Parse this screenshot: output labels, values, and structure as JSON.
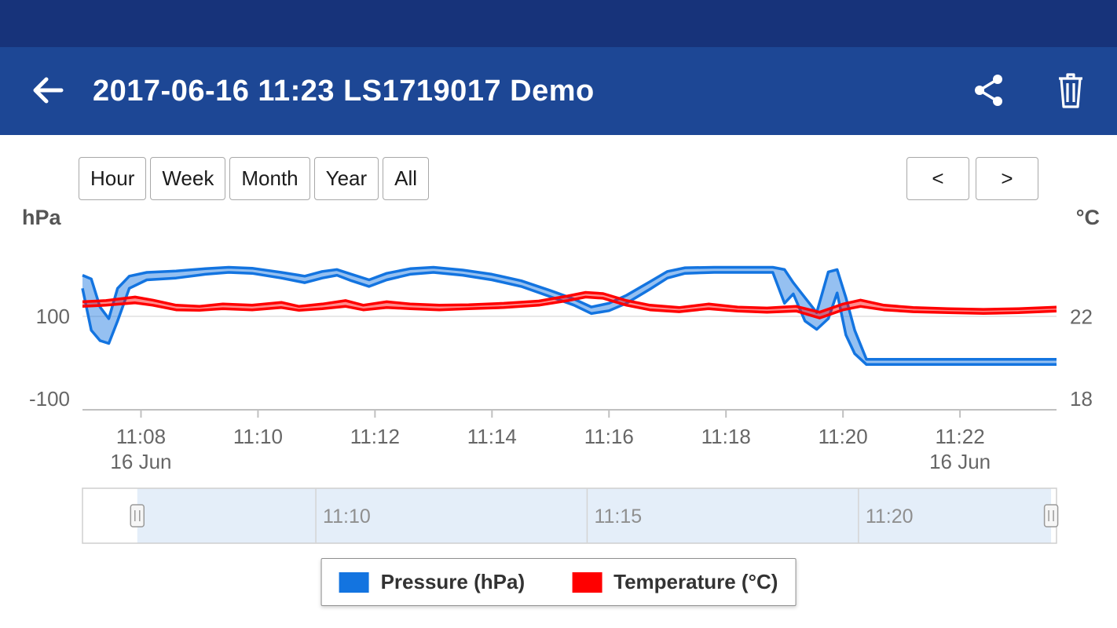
{
  "colors": {
    "status_bar": "#17337a",
    "app_bar": "#1d4795",
    "pressure": "#1374e0",
    "temperature": "#ff0000"
  },
  "app_bar": {
    "title": "2017-06-16 11:23 LS1719017 Demo",
    "back_icon": "arrow-left",
    "share_icon": "share",
    "delete_icon": "trash"
  },
  "toolbar": {
    "range_buttons": [
      {
        "label": "Hour"
      },
      {
        "label": "Week"
      },
      {
        "label": "Month"
      },
      {
        "label": "Year"
      },
      {
        "label": "All"
      }
    ],
    "prev_label": "<",
    "next_label": ">"
  },
  "chart_data": {
    "type": "arearange-line",
    "title": "",
    "left_axis": {
      "unit": "hPa",
      "min": -100,
      "max": 273,
      "ticks": [
        {
          "value": 100,
          "label": "100"
        },
        {
          "value": -100,
          "label": "-100"
        }
      ]
    },
    "right_axis": {
      "unit": "°C",
      "min": 18,
      "max": 25.5,
      "ticks": [
        {
          "value": 22,
          "label": "22"
        },
        {
          "value": 18,
          "label": "18"
        }
      ]
    },
    "x_axis": {
      "min": 0,
      "max": 16.65,
      "labels": [
        {
          "t": 1,
          "label": "11:08",
          "sub": "16 Jun"
        },
        {
          "t": 3,
          "label": "11:10"
        },
        {
          "t": 5,
          "label": "11:12"
        },
        {
          "t": 7,
          "label": "11:14"
        },
        {
          "t": 9,
          "label": "11:16"
        },
        {
          "t": 11,
          "label": "11:18"
        },
        {
          "t": 13,
          "label": "11:20"
        },
        {
          "t": 15,
          "label": "11:22",
          "sub": "16 Jun"
        }
      ]
    },
    "series": [
      {
        "name": "Pressure (hPa)",
        "axis": "left",
        "color": "#1374e0",
        "points": [
          [
            0.0,
            160,
            188
          ],
          [
            0.15,
            70,
            180
          ],
          [
            0.3,
            48,
            120
          ],
          [
            0.45,
            42,
            95
          ],
          [
            0.6,
            90,
            160
          ],
          [
            0.8,
            160,
            186
          ],
          [
            1.1,
            178,
            194
          ],
          [
            1.6,
            182,
            197
          ],
          [
            2.1,
            190,
            202
          ],
          [
            2.5,
            194,
            205
          ],
          [
            2.9,
            192,
            203
          ],
          [
            3.4,
            182,
            194
          ],
          [
            3.8,
            172,
            186
          ],
          [
            4.1,
            182,
            196
          ],
          [
            4.35,
            188,
            200
          ],
          [
            4.6,
            176,
            190
          ],
          [
            4.9,
            164,
            178
          ],
          [
            5.2,
            178,
            192
          ],
          [
            5.6,
            190,
            202
          ],
          [
            6.0,
            194,
            205
          ],
          [
            6.5,
            188,
            199
          ],
          [
            7.0,
            178,
            190
          ],
          [
            7.5,
            164,
            176
          ],
          [
            8.0,
            142,
            155
          ],
          [
            8.4,
            124,
            137
          ],
          [
            8.7,
            106,
            120
          ],
          [
            9.0,
            112,
            128
          ],
          [
            9.3,
            128,
            145
          ],
          [
            9.7,
            158,
            174
          ],
          [
            10.0,
            182,
            196
          ],
          [
            10.3,
            192,
            204
          ],
          [
            10.8,
            194,
            205
          ],
          [
            11.8,
            194,
            205
          ],
          [
            12.0,
            128,
            200
          ],
          [
            12.15,
            148,
            172
          ],
          [
            12.35,
            90,
            140
          ],
          [
            12.55,
            72,
            108
          ],
          [
            12.75,
            95,
            195
          ],
          [
            12.9,
            150,
            200
          ],
          [
            13.05,
            60,
            140
          ],
          [
            13.2,
            20,
            70
          ],
          [
            13.4,
            -3,
            8
          ],
          [
            14.5,
            -3,
            8
          ],
          [
            16.65,
            -3,
            8
          ]
        ]
      },
      {
        "name": "Temperature (°C)",
        "axis": "right",
        "color": "#ff0000",
        "points": [
          [
            0.0,
            22.45,
            22.65
          ],
          [
            0.4,
            22.5,
            22.7
          ],
          [
            0.9,
            22.6,
            22.85
          ],
          [
            1.2,
            22.5,
            22.72
          ],
          [
            1.6,
            22.3,
            22.5
          ],
          [
            2.0,
            22.28,
            22.45
          ],
          [
            2.4,
            22.35,
            22.55
          ],
          [
            2.9,
            22.3,
            22.5
          ],
          [
            3.4,
            22.4,
            22.62
          ],
          [
            3.7,
            22.28,
            22.45
          ],
          [
            4.1,
            22.35,
            22.55
          ],
          [
            4.5,
            22.45,
            22.7
          ],
          [
            4.8,
            22.3,
            22.5
          ],
          [
            5.2,
            22.4,
            22.65
          ],
          [
            5.6,
            22.35,
            22.55
          ],
          [
            6.1,
            22.3,
            22.5
          ],
          [
            6.6,
            22.35,
            22.52
          ],
          [
            7.2,
            22.4,
            22.58
          ],
          [
            7.8,
            22.5,
            22.68
          ],
          [
            8.3,
            22.7,
            22.9
          ],
          [
            8.6,
            22.85,
            23.05
          ],
          [
            8.9,
            22.8,
            23.0
          ],
          [
            9.3,
            22.5,
            22.7
          ],
          [
            9.7,
            22.3,
            22.5
          ],
          [
            10.2,
            22.22,
            22.4
          ],
          [
            10.7,
            22.35,
            22.55
          ],
          [
            11.2,
            22.25,
            22.42
          ],
          [
            11.7,
            22.2,
            22.38
          ],
          [
            12.2,
            22.25,
            22.45
          ],
          [
            12.6,
            21.95,
            22.2
          ],
          [
            13.0,
            22.3,
            22.55
          ],
          [
            13.3,
            22.45,
            22.72
          ],
          [
            13.7,
            22.3,
            22.5
          ],
          [
            14.2,
            22.22,
            22.4
          ],
          [
            14.8,
            22.18,
            22.35
          ],
          [
            15.4,
            22.15,
            22.32
          ],
          [
            16.0,
            22.18,
            22.35
          ],
          [
            16.65,
            22.25,
            22.42
          ]
        ]
      }
    ],
    "navigator": {
      "min": -1.3,
      "max": 16.65,
      "handle_left": -0.29,
      "handle_right": 16.55,
      "labels": [
        {
          "t": 3,
          "label": "11:10"
        },
        {
          "t": 8,
          "label": "11:15"
        },
        {
          "t": 13,
          "label": "11:20"
        }
      ]
    }
  },
  "legend": {
    "items": [
      {
        "label": "Pressure (hPa)",
        "color": "#1374e0"
      },
      {
        "label": "Temperature (°C)",
        "color": "#ff0000"
      }
    ]
  }
}
